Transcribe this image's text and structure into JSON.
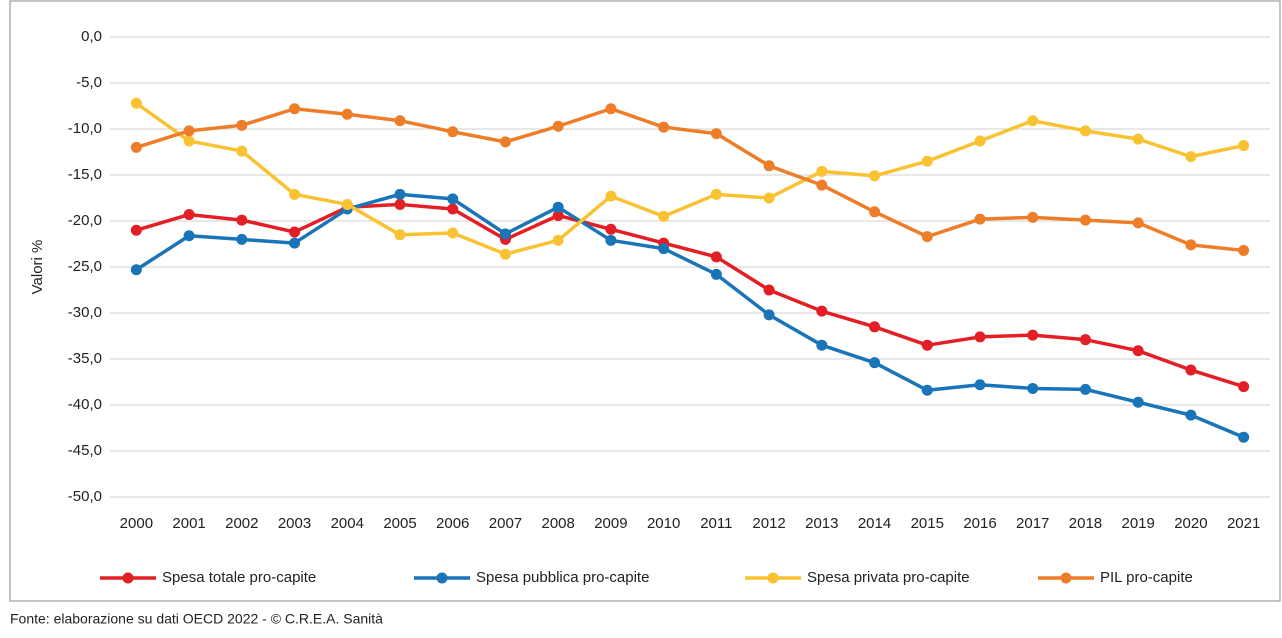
{
  "chart_data": {
    "type": "line",
    "y_label": "Valori %",
    "source": "Fonte: elaborazione su dati OECD 2022 - © C.R.E.A. Sanità",
    "categories": [
      "2000",
      "2001",
      "2002",
      "2003",
      "2004",
      "2005",
      "2006",
      "2007",
      "2008",
      "2009",
      "2010",
      "2011",
      "2012",
      "2013",
      "2014",
      "2015",
      "2016",
      "2017",
      "2018",
      "2019",
      "2020",
      "2021"
    ],
    "series": [
      {
        "name": "Spesa totale pro-capite",
        "color": "#e31e24",
        "values": [
          -21.0,
          -19.3,
          -19.9,
          -21.2,
          -18.5,
          -18.2,
          -18.7,
          -22.0,
          -19.4,
          -20.9,
          -22.4,
          -23.9,
          -27.5,
          -29.8,
          -31.5,
          -33.5,
          -32.6,
          -32.4,
          -32.9,
          -34.1,
          -36.2,
          -38.0
        ]
      },
      {
        "name": "Spesa pubblica pro-capite",
        "color": "#1a75b8",
        "values": [
          -25.3,
          -21.6,
          -22.0,
          -22.4,
          -18.7,
          -17.1,
          -17.6,
          -21.4,
          -18.5,
          -22.1,
          -23.0,
          -25.8,
          -30.2,
          -33.5,
          -35.4,
          -38.4,
          -37.8,
          -38.2,
          -38.3,
          -39.7,
          -41.1,
          -43.5
        ]
      },
      {
        "name": "Spesa privata pro-capite",
        "color": "#f9c232",
        "values": [
          -7.2,
          -11.3,
          -12.4,
          -17.1,
          -18.2,
          -21.5,
          -21.3,
          -23.6,
          -22.1,
          -17.3,
          -19.5,
          -17.1,
          -17.5,
          -14.6,
          -15.1,
          -13.5,
          -11.3,
          -9.1,
          -10.2,
          -11.1,
          -13.0,
          -11.8
        ]
      },
      {
        "name": "PIL pro-capite",
        "color": "#ee7d2a",
        "values": [
          -12.0,
          -10.2,
          -9.6,
          -7.8,
          -8.4,
          -9.1,
          -10.3,
          -11.4,
          -9.7,
          -7.8,
          -9.8,
          -10.5,
          -14.0,
          -16.1,
          -19.0,
          -21.7,
          -19.8,
          -19.6,
          -19.9,
          -20.2,
          -22.6,
          -23.2
        ]
      }
    ],
    "ylim": [
      -50,
      0
    ],
    "yticks": [
      {
        "value": 0,
        "label": "0,0"
      },
      {
        "value": -5,
        "label": "-5,0"
      },
      {
        "value": -10,
        "label": "-10,0"
      },
      {
        "value": -15,
        "label": "-15,0"
      },
      {
        "value": -20,
        "label": "-20,0"
      },
      {
        "value": -25,
        "label": "-25,0"
      },
      {
        "value": -30,
        "label": "-30,0"
      },
      {
        "value": -35,
        "label": "-35,0"
      },
      {
        "value": -40,
        "label": "-40,0"
      },
      {
        "value": -45,
        "label": "-45,0"
      },
      {
        "value": -50,
        "label": "-50,0"
      }
    ],
    "grid": true,
    "legend": "bottom"
  }
}
